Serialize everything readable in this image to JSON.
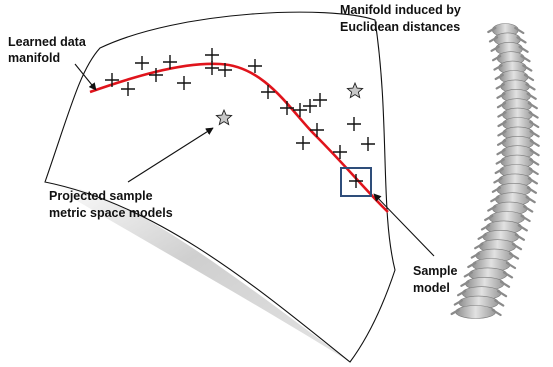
{
  "labels": {
    "learned_manifold": [
      "Learned data",
      "manifold"
    ],
    "euclidean_manifold": [
      "Manifold induced by",
      "Euclidean distances"
    ],
    "projected_models": [
      "Projected sample",
      "metric space models"
    ],
    "sample_model": [
      "Sample",
      "model"
    ]
  },
  "colors": {
    "manifold_curve": "#e0141c",
    "highlight_box": "#2e4d7a",
    "surface_shadow": "#d6d6d6",
    "star_fill": "#c8c8c8",
    "spine": "#c4c4c4"
  },
  "icons": {
    "sample_marker": "plus-marker-icon",
    "projected_marker": "star-icon",
    "spine_shape": "vertebral-column-icon"
  }
}
